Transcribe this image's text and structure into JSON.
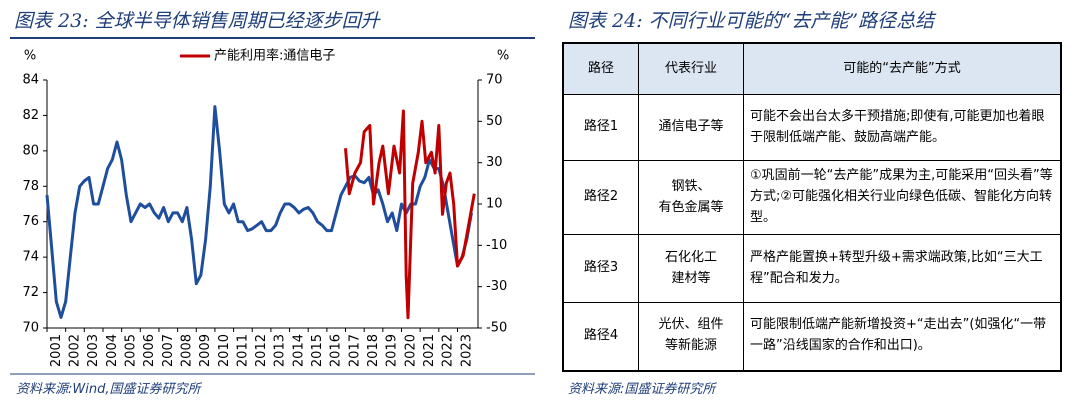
{
  "chart_data": {
    "type": "line",
    "title": "图表 23:  全球半导体销售周期已经逐步回升",
    "y_label": "%",
    "y2_label": "%",
    "source": "资料来源:Wind,国盛证券研究所",
    "xlim": [
      2001,
      2024.1
    ],
    "xticks": [
      2001,
      2002,
      2003,
      2004,
      2005,
      2006,
      2007,
      2008,
      2009,
      2010,
      2011,
      2012,
      2013,
      2014,
      2015,
      2016,
      2017,
      2018,
      2019,
      2020,
      2021,
      2022,
      2023
    ],
    "ylim": [
      70,
      84
    ],
    "yticks": [
      70,
      72,
      74,
      76,
      78,
      80,
      82,
      84
    ],
    "y2lim": [
      -50,
      70
    ],
    "y2ticks": [
      -50,
      -30,
      -10,
      10,
      30,
      50,
      70
    ],
    "series": [
      {
        "color": "#1f4e9c",
        "x": [
          2001,
          2001.25,
          2001.5,
          2001.75,
          2002,
          2002.25,
          2002.5,
          2002.75,
          2003,
          2003.25,
          2003.5,
          2003.75,
          2004,
          2004.25,
          2004.5,
          2004.75,
          2005,
          2005.25,
          2005.5,
          2005.75,
          2006,
          2006.25,
          2006.5,
          2006.75,
          2007,
          2007.25,
          2007.5,
          2007.75,
          2008,
          2008.25,
          2008.5,
          2008.75,
          2009,
          2009.25,
          2009.5,
          2009.75,
          2010,
          2010.25,
          2010.5,
          2010.75,
          2011,
          2011.25,
          2011.5,
          2011.75,
          2012,
          2012.25,
          2012.5,
          2012.75,
          2013,
          2013.25,
          2013.5,
          2013.75,
          2014,
          2014.25,
          2014.5,
          2014.75,
          2015,
          2015.25,
          2015.5,
          2015.75,
          2016,
          2016.25,
          2016.5,
          2016.75,
          2017,
          2017.25,
          2017.5,
          2017.75,
          2018,
          2018.25,
          2018.5,
          2018.75,
          2019,
          2019.25,
          2019.5,
          2019.75,
          2020,
          2020.25,
          2020.5,
          2020.75,
          2021,
          2021.25,
          2021.5,
          2021.75,
          2022,
          2022.25,
          2022.5,
          2022.75,
          2023,
          2023.25,
          2023.5,
          2023.75
        ],
        "values": [
          77.5,
          74.5,
          71.5,
          70.6,
          71.5,
          74,
          76.5,
          78,
          78.3,
          78.5,
          77,
          77,
          78,
          79,
          79.5,
          80.5,
          79.5,
          77.5,
          76,
          76.5,
          77,
          76.8,
          77,
          76.5,
          76.2,
          76.8,
          76,
          76.5,
          76.5,
          76,
          76.8,
          75,
          72.5,
          73,
          75,
          78,
          82.5,
          80,
          77,
          76.5,
          77,
          76,
          76,
          75.5,
          75.6,
          75.8,
          76,
          75.5,
          75.5,
          75.8,
          76.5,
          77,
          77,
          76.8,
          76.5,
          76.7,
          76.8,
          76.5,
          76,
          75.8,
          75.5,
          75.5,
          76.5,
          77.5,
          78,
          78.5,
          78.6,
          78.3,
          78.2,
          78.5,
          77.5,
          77.8,
          77,
          76,
          76.5,
          75.5,
          77,
          76.5,
          77,
          77,
          78,
          78.5,
          79.5,
          79,
          79,
          78,
          76.5,
          75,
          73.5,
          74,
          75,
          76.5
        ]
      },
      {
        "name": "产能利用率:通信电子",
        "color": "#c00000",
        "axis": "y2",
        "x": [
          2017,
          2017.2,
          2017.5,
          2017.8,
          2018,
          2018.3,
          2018.5,
          2018.8,
          2019,
          2019.3,
          2019.6,
          2019.9,
          2020.1,
          2020.25,
          2020.35,
          2020.6,
          2020.9,
          2021.1,
          2021.3,
          2021.6,
          2021.8,
          2022,
          2022.2,
          2022.4,
          2022.6,
          2022.8,
          2023,
          2023.3,
          2023.6,
          2023.9
        ],
        "values": [
          37,
          15,
          25,
          30,
          45,
          48,
          10,
          30,
          38,
          15,
          38,
          25,
          55,
          -25,
          -45,
          20,
          35,
          50,
          30,
          35,
          25,
          48,
          5,
          20,
          25,
          10,
          -20,
          -15,
          0,
          15
        ]
      }
    ]
  },
  "table": {
    "title": "图表 24:  不同行业可能的“去产能”路径总结",
    "header": [
      "路径",
      "代表行业",
      "可能的“去产能”方式"
    ],
    "rows": [
      [
        "路径1",
        "通信电子等",
        "可能不会出台太多干预措施;即使有,可能更加也着眼于限制低端产能、鼓励高端产能。"
      ],
      [
        "路径2",
        "钢铁、\n有色金属等",
        "①巩固前一轮“去产能”成果为主,可能采用“回头看”等方式;②可能强化相关行业向绿色低碳、智能化方向转型。"
      ],
      [
        "路径3",
        "石化化工\n建材等",
        "严格产能置换+转型升级+需求端政策,比如“三大工程”配合和发力。"
      ],
      [
        "路径4",
        "光伏、组件\n等新能源",
        "可能限制低端产能新增投资+“走出去”(如强化“一带一路”沿线国家的合作和出口)。"
      ]
    ],
    "source": "资料来源:国盛证券研究所"
  }
}
